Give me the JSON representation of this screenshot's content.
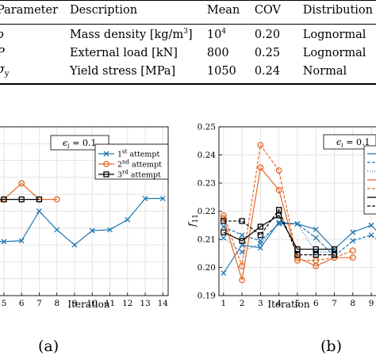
{
  "table": {
    "headers": [
      "Parameter",
      "Description",
      "Mean",
      "COV",
      "Distribution"
    ],
    "rows": [
      {
        "param": "ρ",
        "sub": "",
        "desc": "Mass density [kg/m",
        "desc_sup": "3",
        "desc_end": "]",
        "mean": "10",
        "mean_sup": "4",
        "cov": "0.20",
        "dist": "Lognormal"
      },
      {
        "param": "P",
        "sub": "",
        "desc": "External load [kN]",
        "desc_sup": "",
        "desc_end": "",
        "mean": "800",
        "mean_sup": "",
        "cov": "0.25",
        "dist": "Lognormal"
      },
      {
        "param": "σ",
        "sub": "y",
        "desc": "Yield stress [MPa]",
        "desc_sup": "",
        "desc_end": "",
        "mean": "1050",
        "mean_sup": "",
        "cov": "0.24",
        "dist": "Normal"
      }
    ]
  },
  "panel_a": {
    "caption": "(a)",
    "eps_label": "ϵ",
    "eps_sub": "i",
    "eps_value": " = 0.1",
    "legend": [
      {
        "pre": "1",
        "sup": "st",
        "post": " attempt"
      },
      {
        "pre": "2",
        "sup": "nd",
        "post": " attempt"
      },
      {
        "pre": "3",
        "sup": "rd",
        "post": " attempt"
      }
    ]
  },
  "panel_b": {
    "caption": "(b)",
    "eps_label": "ϵ",
    "eps_sub": "i",
    "eps_value": " = 0.1"
  },
  "colors": {
    "blue": "#1f77b4",
    "orange": "#e26a2c",
    "black": "#000000",
    "grid": "#dddddd"
  },
  "chart_data": [
    {
      "type": "line",
      "xlabel": "Iteration",
      "ylabel": "",
      "x_ticks": [
        "5",
        "6",
        "7",
        "8",
        "9",
        "10",
        "11",
        "12",
        "13",
        "14"
      ],
      "xlim": [
        4.6,
        14.3
      ],
      "ylim": [
        0,
        10
      ],
      "grid": true,
      "legend_position": "top-right",
      "series": [
        {
          "name": "1st attempt",
          "color": "#1f77b4",
          "marker": "x",
          "dash": "",
          "x": [
            4.6,
            5,
            6,
            7,
            8,
            9,
            10,
            11,
            12,
            13,
            14
          ],
          "y": [
            3.2,
            3.2,
            3.25,
            5.0,
            3.9,
            3.0,
            3.85,
            3.9,
            4.5,
            5.75,
            5.75
          ]
        },
        {
          "name": "2nd attempt",
          "color": "#e26a2c",
          "marker": "o",
          "dash": "",
          "x": [
            4.6,
            5,
            6,
            7,
            8
          ],
          "y": [
            5.5,
            5.7,
            6.65,
            5.7,
            5.7
          ]
        },
        {
          "name": "3rd attempt",
          "color": "#000000",
          "marker": "s",
          "dash": "",
          "x": [
            4.6,
            5,
            6,
            7
          ],
          "y": [
            5.7,
            5.7,
            5.7,
            5.7
          ]
        }
      ]
    },
    {
      "type": "line",
      "xlabel": "Iteration",
      "ylabel": "f",
      "ylabel_sub": "11",
      "x_ticks": [
        "1",
        "2",
        "3",
        "4",
        "5",
        "6",
        "7",
        "8",
        "9"
      ],
      "y_ticks": [
        "0.19",
        "0.20",
        "0.21",
        "0.22",
        "0.23",
        "0.24",
        "0.25"
      ],
      "xlim": [
        0.75,
        9.6
      ],
      "ylim": [
        0.19,
        0.25
      ],
      "grid": true,
      "legend_position": "top-right",
      "series": [
        {
          "color": "#1f77b4",
          "marker": "x",
          "dash": "",
          "x": [
            1,
            2,
            3,
            4,
            5,
            6,
            7,
            8,
            9,
            9.6
          ],
          "y": [
            0.198,
            0.208,
            0.207,
            0.216,
            0.2155,
            0.2135,
            0.2065,
            0.2125,
            0.215,
            0.211
          ]
        },
        {
          "color": "#1f77b4",
          "marker": "x",
          "dash": "4,2",
          "x": [
            1,
            2,
            3,
            4,
            5,
            6,
            7,
            8,
            9,
            9.6
          ],
          "y": [
            0.2145,
            0.2115,
            0.2095,
            0.2155,
            0.2155,
            0.2105,
            0.204,
            0.2095,
            0.2115,
            0.2085
          ]
        },
        {
          "color": "#1f77b4",
          "marker": "x",
          "dash": "1,2",
          "x": [
            1,
            2,
            3,
            4,
            5,
            6,
            7
          ],
          "y": [
            0.2105,
            0.2055,
            0.2085,
            0.216,
            0.2155,
            0.2055,
            0.2055
          ]
        },
        {
          "color": "#e26a2c",
          "marker": "o",
          "dash": "",
          "x": [
            1,
            2,
            3,
            4,
            5,
            6,
            7,
            8
          ],
          "y": [
            0.2175,
            0.1955,
            0.2355,
            0.2275,
            0.2035,
            0.2005,
            0.2035,
            0.2035
          ]
        },
        {
          "color": "#e26a2c",
          "marker": "o",
          "dash": "4,2",
          "x": [
            1,
            2,
            3,
            4,
            5,
            6,
            7,
            8
          ],
          "y": [
            0.2185,
            0.2005,
            0.2435,
            0.2345,
            0.2025,
            0.2025,
            0.2035,
            0.206
          ]
        },
        {
          "color": "#000000",
          "marker": "s",
          "dash": "",
          "x": [
            1,
            2,
            3,
            4,
            5,
            6,
            7
          ],
          "y": [
            0.2125,
            0.2095,
            0.2145,
            0.2185,
            0.2065,
            0.2065,
            0.2065
          ]
        },
        {
          "color": "#000000",
          "marker": "s",
          "dash": "4,2",
          "x": [
            1,
            2,
            3,
            4,
            5,
            6,
            7
          ],
          "y": [
            0.2165,
            0.2165,
            0.2115,
            0.2205,
            0.2045,
            0.2045,
            0.2045
          ]
        }
      ]
    }
  ]
}
